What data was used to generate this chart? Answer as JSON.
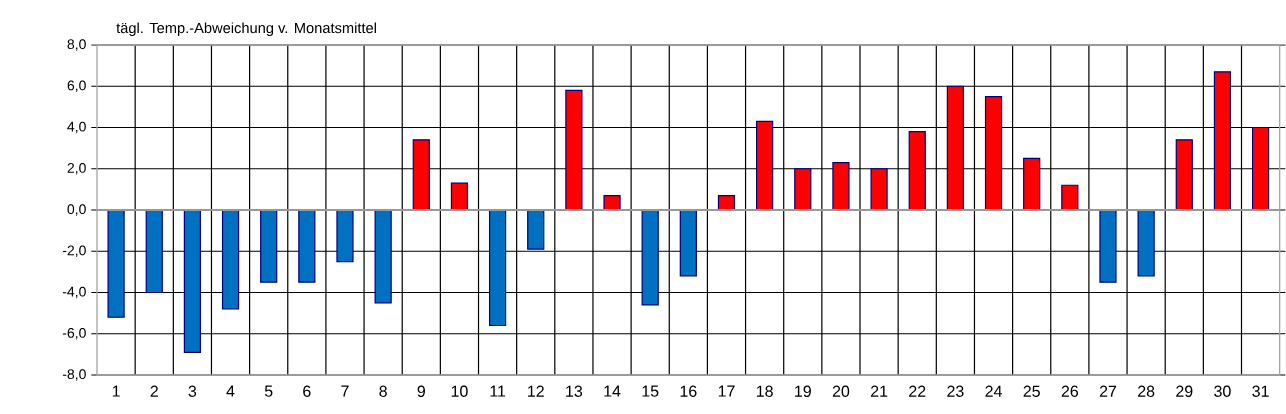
{
  "chart_data": {
    "type": "bar",
    "title": "tägl. Temp.-Abweichung v. Monatsmittel",
    "categories": [
      "1",
      "2",
      "3",
      "4",
      "5",
      "6",
      "7",
      "8",
      "9",
      "10",
      "11",
      "12",
      "13",
      "14",
      "15",
      "16",
      "17",
      "18",
      "19",
      "20",
      "21",
      "22",
      "23",
      "24",
      "25",
      "26",
      "27",
      "28",
      "29",
      "30",
      "31"
    ],
    "values": [
      -5.2,
      -4.0,
      -6.9,
      -4.8,
      -3.5,
      -3.5,
      -2.5,
      -4.5,
      3.4,
      1.3,
      -5.6,
      -1.9,
      5.8,
      0.7,
      -4.6,
      -3.2,
      0.7,
      4.3,
      2.0,
      2.3,
      2.0,
      3.8,
      6.0,
      5.5,
      2.5,
      1.2,
      -3.5,
      -3.2,
      3.4,
      6.7,
      4.0
    ],
    "colors": [
      "#0070c0",
      "#0070c0",
      "#0070c0",
      "#0070c0",
      "#0070c0",
      "#0070c0",
      "#0070c0",
      "#0070c0",
      "#ff0000",
      "#ff0000",
      "#0070c0",
      "#0070c0",
      "#ff0000",
      "#ff0000",
      "#0070c0",
      "#0070c0",
      "#ff0000",
      "#ff0000",
      "#ff0000",
      "#ff0000",
      "#ff0000",
      "#ff0000",
      "#ff0000",
      "#ff0000",
      "#ff0000",
      "#ff0000",
      "#0070c0",
      "#0070c0",
      "#ff0000",
      "#ff0000",
      "#ff0000"
    ],
    "ylim": [
      -8,
      8
    ],
    "yticks": [
      {
        "value": -8,
        "label": "-8,0"
      },
      {
        "value": -6,
        "label": "-6,0"
      },
      {
        "value": -4,
        "label": "-4,0"
      },
      {
        "value": -2,
        "label": "-2,0"
      },
      {
        "value": 0,
        "label": "0,0"
      },
      {
        "value": 2,
        "label": "2,0"
      },
      {
        "value": 4,
        "label": "4,0"
      },
      {
        "value": 6,
        "label": "6,0"
      },
      {
        "value": 8,
        "label": "8,0"
      }
    ],
    "grid": true
  }
}
